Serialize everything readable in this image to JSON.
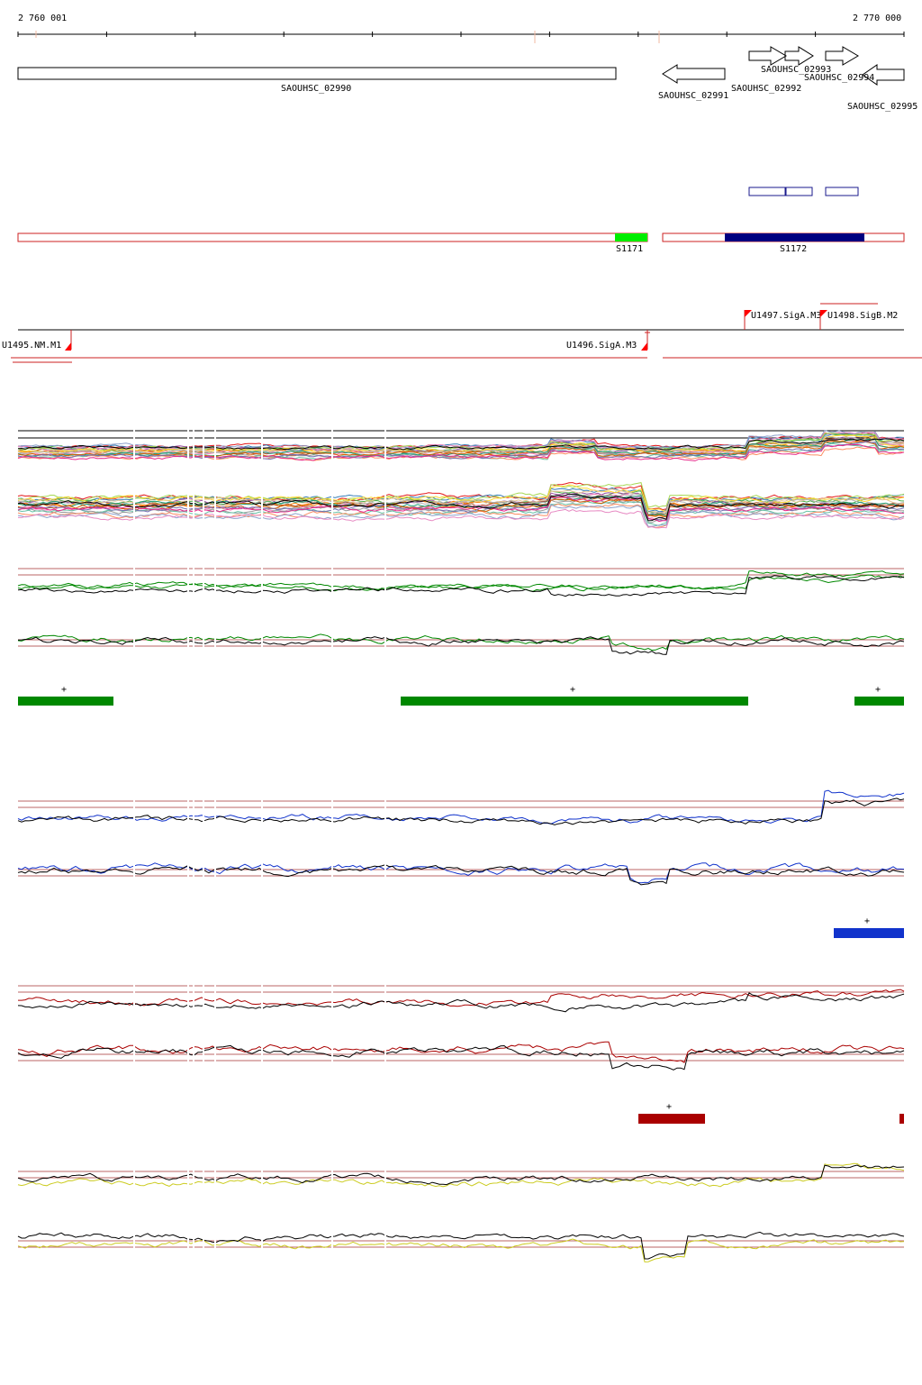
{
  "ruler": {
    "start_label": "2 760 001",
    "end_label": "2 770 000"
  },
  "genes": [
    {
      "label": "SAOUHSC_02990",
      "strand": "none"
    },
    {
      "label": "SAOUHSC_02991",
      "strand": "-"
    },
    {
      "label": "SAOUHSC_02992",
      "strand": "+"
    },
    {
      "label": "SAOUHSC_02993",
      "strand": "+"
    },
    {
      "label": "SAOUHSC_02994",
      "strand": "+"
    },
    {
      "label": "SAOUHSC_02995",
      "strand": "-"
    }
  ],
  "segments": [
    {
      "label": "S1171",
      "color": "#00ee00"
    },
    {
      "label": "S1172",
      "color": "#000080"
    }
  ],
  "promoters": [
    {
      "label": "U1495.NM.M1"
    },
    {
      "label": "U1496.SigA.M3"
    },
    {
      "label": "U1497.SigA.M3"
    },
    {
      "label": "U1498.SigB.M2"
    }
  ],
  "colors": {
    "green": "#008800",
    "blue": "#1133cc",
    "red": "#aa0000",
    "yellow": "#cccc22",
    "outline_red": "#cc2222",
    "navy": "#1a1a8c"
  },
  "condition_markers": {
    "green": [
      "+",
      "+",
      "+"
    ],
    "blue": [
      "+"
    ],
    "red": [
      "+"
    ]
  }
}
